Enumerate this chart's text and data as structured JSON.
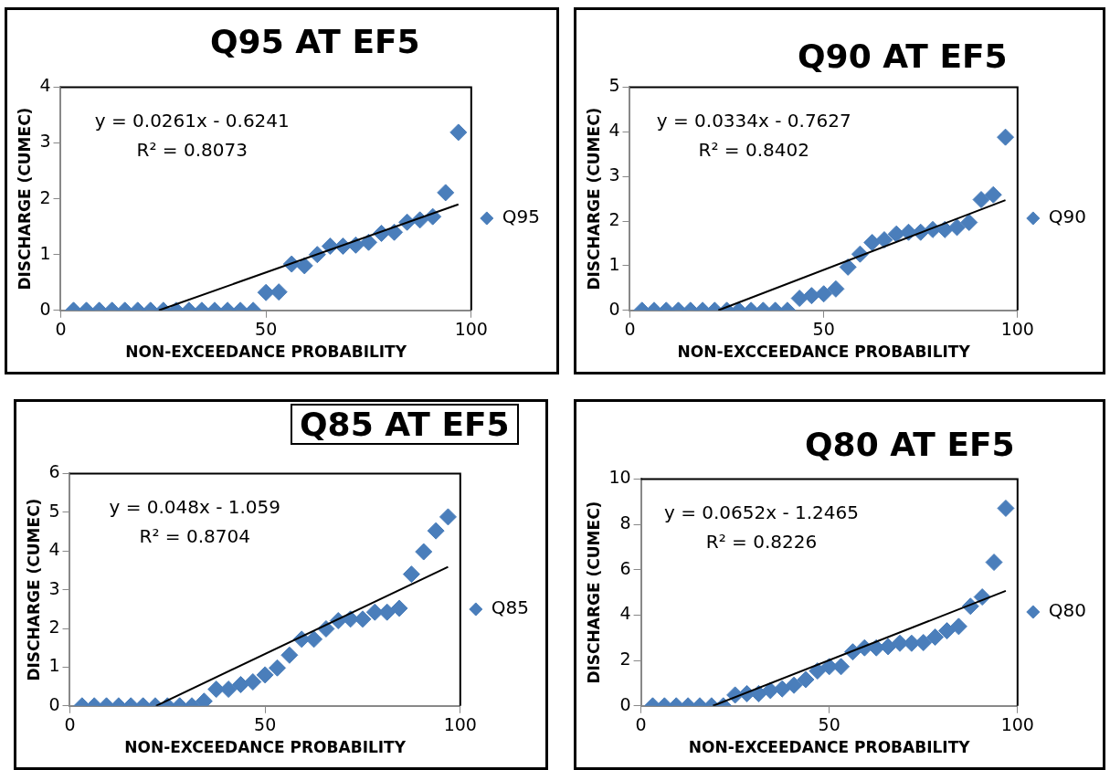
{
  "chart_data": [
    {
      "type": "scatter",
      "title": "Q95 AT EF5",
      "xlabel": "NON-EXCEEDANCE PROBABILITY",
      "ylabel": "DISCHARGE (CUMEC)",
      "xlim": [
        0,
        100
      ],
      "xticks": [
        0,
        50,
        100
      ],
      "ylim": [
        0,
        4
      ],
      "yticks": [
        0,
        1,
        2,
        3,
        4
      ],
      "grid": false,
      "legend": "right",
      "marker": "diamond",
      "annotations": [
        "y = 0.0261x - 0.6241",
        "R² = 0.8073"
      ],
      "series": [
        {
          "name": "Q95",
          "color": "#4a7ebb",
          "x": [
            3.125,
            6.25,
            9.375,
            12.5,
            15.625,
            18.75,
            21.875,
            25,
            28.125,
            31.25,
            34.375,
            37.5,
            40.625,
            43.75,
            46.875,
            50,
            53.125,
            56.25,
            59.375,
            62.5,
            65.625,
            68.75,
            71.875,
            75,
            78.125,
            81.25,
            84.375,
            87.5,
            90.625,
            93.75,
            96.875
          ],
          "values": [
            0,
            0,
            0,
            0,
            0,
            0,
            0,
            0,
            0,
            0,
            0,
            0,
            0,
            0,
            0,
            0.32,
            0.33,
            0.83,
            0.8,
            1.0,
            1.15,
            1.15,
            1.17,
            1.22,
            1.38,
            1.4,
            1.58,
            1.62,
            1.68,
            2.11,
            3.19
          ]
        },
        {
          "type": "line",
          "color": "#000000",
          "marker": "none",
          "x": [
            23.9,
            96.875
          ],
          "values": [
            0,
            1.9
          ]
        }
      ]
    },
    {
      "type": "scatter",
      "title": "Q90 AT EF5",
      "xlabel": "NON-EXCCEEDANCE PROBABILITY",
      "ylabel": "DISCHARGE (CUMEC)",
      "xlim": [
        0,
        100
      ],
      "xticks": [
        0,
        50,
        100
      ],
      "ylim": [
        0,
        5
      ],
      "yticks": [
        0,
        1,
        2,
        3,
        4,
        5
      ],
      "grid": false,
      "legend": "right",
      "marker": "diamond",
      "annotations": [
        "y = 0.0334x - 0.7627",
        "R² = 0.8402"
      ],
      "series": [
        {
          "name": "Q90",
          "color": "#4a7ebb",
          "x": [
            3.125,
            6.25,
            9.375,
            12.5,
            15.625,
            18.75,
            21.875,
            25,
            28.125,
            31.25,
            34.375,
            37.5,
            40.625,
            43.75,
            46.875,
            50,
            53.125,
            56.25,
            59.375,
            62.5,
            65.625,
            68.75,
            71.875,
            75,
            78.125,
            81.25,
            84.375,
            87.5,
            90.625,
            93.75,
            96.875
          ],
          "values": [
            0,
            0,
            0,
            0,
            0,
            0,
            0,
            0,
            0,
            0,
            0,
            0,
            0,
            0.27,
            0.33,
            0.37,
            0.48,
            0.97,
            1.26,
            1.52,
            1.58,
            1.71,
            1.75,
            1.75,
            1.81,
            1.81,
            1.86,
            1.97,
            2.48,
            2.59,
            3.88
          ]
        },
        {
          "type": "line",
          "color": "#000000",
          "marker": "none",
          "x": [
            22.8,
            96.875
          ],
          "values": [
            0,
            2.47
          ]
        }
      ]
    },
    {
      "type": "scatter",
      "title": "Q85 AT EF5",
      "xlabel": "NON-EXCEEDANCE PROBABILITY",
      "ylabel": "DISCHARGE (CUMEC)",
      "xlim": [
        0,
        100
      ],
      "xticks": [
        0,
        50,
        100
      ],
      "ylim": [
        0,
        6
      ],
      "yticks": [
        0,
        1,
        2,
        3,
        4,
        5,
        6
      ],
      "grid": false,
      "legend": "right",
      "marker": "diamond",
      "annotations": [
        "y = 0.048x - 1.059",
        "R² = 0.8704"
      ],
      "series": [
        {
          "name": "Q85",
          "color": "#4a7ebb",
          "x": [
            3.125,
            6.25,
            9.375,
            12.5,
            15.625,
            18.75,
            21.875,
            25,
            28.125,
            31.25,
            34.375,
            37.5,
            40.625,
            43.75,
            46.875,
            50,
            53.125,
            56.25,
            59.375,
            62.5,
            65.625,
            68.75,
            71.875,
            75,
            78.125,
            81.25,
            84.375,
            87.5,
            90.625,
            93.75,
            96.875
          ],
          "values": [
            0,
            0,
            0,
            0,
            0,
            0,
            0,
            0,
            0,
            0,
            0.12,
            0.43,
            0.43,
            0.55,
            0.62,
            0.8,
            0.98,
            1.31,
            1.72,
            1.72,
            1.99,
            2.2,
            2.24,
            2.24,
            2.42,
            2.42,
            2.52,
            3.4,
            3.98,
            4.52,
            4.88
          ]
        },
        {
          "type": "line",
          "color": "#000000",
          "marker": "none",
          "x": [
            22.06,
            96.875
          ],
          "values": [
            0,
            3.59
          ]
        }
      ]
    },
    {
      "type": "scatter",
      "title": "Q80 AT EF5",
      "xlabel": "NON-EXCEEDANCE PROBABILITY",
      "ylabel": "DISCHARGE (CUMEC)",
      "xlim": [
        0,
        100
      ],
      "xticks": [
        0,
        50,
        100
      ],
      "ylim": [
        0,
        10
      ],
      "yticks": [
        0,
        2,
        4,
        6,
        8,
        10
      ],
      "grid": false,
      "legend": "right",
      "marker": "diamond",
      "annotations": [
        "y = 0.0652x - 1.2465",
        "R² = 0.8226"
      ],
      "series": [
        {
          "name": "Q80",
          "color": "#4a7ebb",
          "x": [
            3.125,
            6.25,
            9.375,
            12.5,
            15.625,
            18.75,
            21.875,
            25,
            28.125,
            31.25,
            34.375,
            37.5,
            40.625,
            43.75,
            46.875,
            50,
            53.125,
            56.25,
            59.375,
            62.5,
            65.625,
            68.75,
            71.875,
            75,
            78.125,
            81.25,
            84.375,
            87.5,
            90.625,
            93.75,
            96.875
          ],
          "values": [
            0,
            0,
            0,
            0,
            0,
            0,
            0,
            0.48,
            0.54,
            0.54,
            0.68,
            0.75,
            0.91,
            1.16,
            1.54,
            1.73,
            1.73,
            2.38,
            2.56,
            2.56,
            2.61,
            2.76,
            2.76,
            2.79,
            3.03,
            3.31,
            3.5,
            4.39,
            4.8,
            6.33,
            8.71
          ]
        },
        {
          "type": "line",
          "color": "#000000",
          "marker": "none",
          "x": [
            19.12,
            96.875
          ],
          "values": [
            0,
            5.07
          ]
        }
      ]
    }
  ]
}
